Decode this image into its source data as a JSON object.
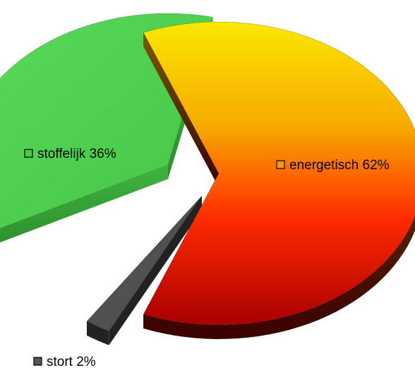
{
  "chart_data": {
    "type": "pie",
    "style": "3d-exploded",
    "categories": [
      "energetisch",
      "stoffelijk",
      "stort"
    ],
    "values": [
      62,
      36,
      2
    ],
    "unit": "%",
    "data_labels": [
      "energetisch 62%",
      "stoffelijk 36%",
      "stort 2%"
    ],
    "colors": {
      "energetisch": {
        "top": "#f9e400",
        "bottom": "#c00000",
        "side": "#5a0000"
      },
      "stoffelijk": {
        "top": "#52d652",
        "bottom": "#3cb83c",
        "side": "#2a8c2a"
      },
      "stort": {
        "top": "#555555",
        "bottom": "#3c3c3c",
        "side": "#1a1a1a"
      }
    },
    "legend_marker_colors": {
      "energetisch": "#f59a00",
      "stoffelijk": "#4cc94c",
      "stort": "#555555"
    },
    "legend": "none",
    "title": ""
  }
}
